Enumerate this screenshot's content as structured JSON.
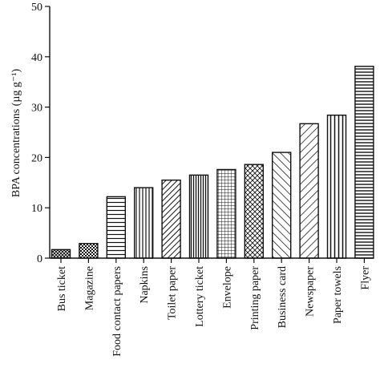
{
  "chart_data": {
    "type": "bar",
    "ylabel": "BPA concentrations (µg g⁻¹)",
    "ylim": [
      0,
      50
    ],
    "yticks": [
      0,
      10,
      20,
      30,
      40,
      50
    ],
    "categories": [
      "Bus ticket",
      "Magazine",
      "Food contact papers",
      "Napkins",
      "Toilet paper",
      "Lottery ticket",
      "Envelope",
      "Printing paper",
      "Business card",
      "Newspaper",
      "Paper towels",
      "Flyer"
    ],
    "values": [
      1.7,
      2.9,
      12.2,
      14.0,
      15.5,
      16.5,
      17.6,
      18.6,
      21.0,
      26.7,
      28.4,
      38.1
    ],
    "fill_patterns": [
      "crosshatch-small",
      "checker",
      "horizontal-lines",
      "vertical-lines",
      "diagonal-forward",
      "vertical-lines-dense",
      "grid",
      "diagonal-crosshatch",
      "diagonal-back",
      "diagonal-forward-wide",
      "vertical-lines-wide",
      "horizontal-lines-dense"
    ],
    "grid": false,
    "legend": "none"
  }
}
